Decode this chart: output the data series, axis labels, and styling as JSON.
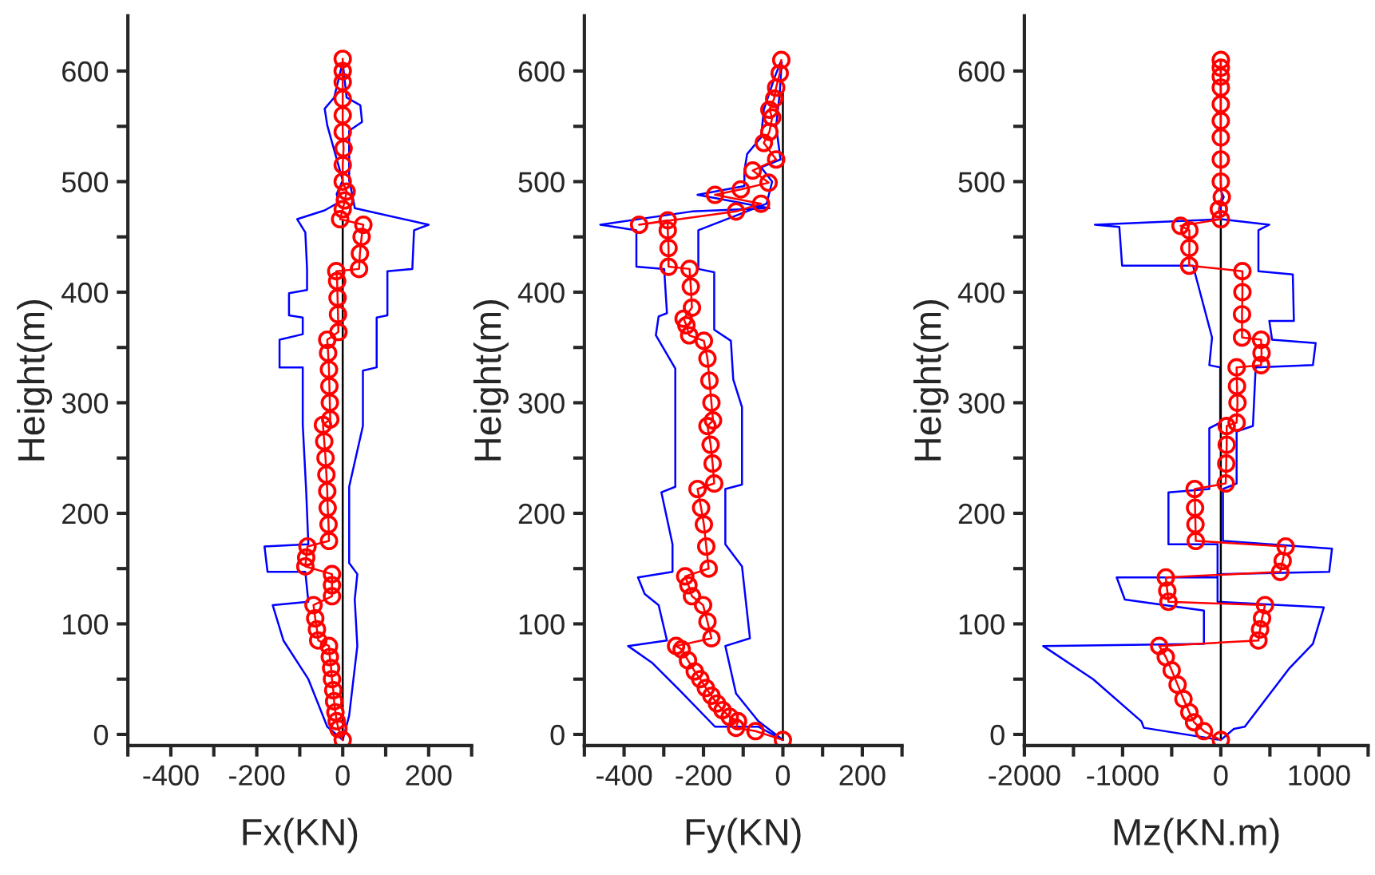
{
  "chart_data": [
    {
      "type": "line",
      "orientation": "horizontal",
      "xlabel": "Fx(KN)",
      "ylabel": "Height(m)",
      "xlim": [
        -500,
        300
      ],
      "ylim": [
        -10,
        650
      ],
      "xticks": [
        {
          "value": -500,
          "label": null
        },
        -400,
        {
          "value": -300,
          "label": null
        },
        -200,
        {
          "value": -100,
          "label": null
        },
        0,
        {
          "value": 100,
          "label": null
        },
        200,
        {
          "value": 300,
          "label": null
        }
      ],
      "yticks": [
        0,
        {
          "value": 50,
          "label": null
        },
        100,
        {
          "value": 150,
          "label": null
        },
        200,
        {
          "value": 250,
          "label": null
        },
        300,
        {
          "value": 350,
          "label": null
        },
        400,
        {
          "value": 450,
          "label": null
        },
        500,
        {
          "value": 550,
          "label": null
        },
        600
      ],
      "grid": false,
      "series": [
        {
          "color": "#0000ff",
          "marker": "none",
          "line_style": "solid",
          "x": [
            -5,
            7,
            50,
            85,
            117,
            120,
            147,
            147,
            170,
            172,
            220,
            280,
            332,
            332,
            357,
            362,
            377,
            379,
            399,
            402,
            421,
            454,
            466,
            474,
            481,
            489,
            501,
            551,
            566,
            576,
            608
          ],
          "values": [
            0,
            -36,
            -80,
            -138,
            -163,
            -80,
            -87,
            -175,
            -182,
            -80,
            -85,
            -93,
            -93,
            -147,
            -147,
            -93,
            -93,
            -125,
            -125,
            -83,
            -83,
            -87,
            -106,
            -42,
            -10,
            -14,
            0,
            -36,
            -42,
            -20,
            0
          ]
        },
        {
          "color": "#0000ff",
          "marker": "none",
          "line_style": "solid",
          "x": [
            -5,
            17,
            80,
            122,
            145,
            155,
            224,
            279,
            329,
            332,
            377,
            379,
            419,
            421,
            456,
            461,
            476,
            489,
            501,
            546,
            554,
            569,
            576,
            608
          ],
          "values": [
            0,
            15,
            34,
            28,
            34,
            15,
            15,
            47,
            47,
            79,
            79,
            104,
            104,
            162,
            166,
            200,
            28,
            22,
            15,
            15,
            45,
            41,
            9,
            0
          ]
        },
        {
          "color": "#000000",
          "marker": "none",
          "line_style": "solid",
          "x": [
            -5,
            464
          ],
          "values": [
            0,
            0
          ]
        },
        {
          "color": "#ff0000",
          "marker": "circle",
          "line_style": "solid",
          "x": [
            -5,
            5,
            12,
            20,
            30,
            40,
            50,
            60,
            70,
            80,
            85,
            95,
            105,
            117,
            125,
            135,
            145,
            152,
            160,
            170,
            175,
            190,
            205,
            220,
            235,
            250,
            265,
            280,
            285,
            300,
            315,
            330,
            345,
            357,
            364,
            380,
            395,
            410,
            419,
            421,
            435,
            450,
            461,
            466,
            475,
            483,
            491,
            500,
            515,
            530,
            545,
            560,
            575,
            590,
            600,
            611
          ],
          "values": [
            0,
            -10,
            -14,
            -17,
            -20,
            -22,
            -25,
            -27,
            -30,
            -32,
            -57,
            -60,
            -64,
            -68,
            -25,
            -25,
            -25,
            -87,
            -85,
            -82,
            -32,
            -33,
            -35,
            -36,
            -38,
            -40,
            -43,
            -46,
            -29,
            -30,
            -31,
            -32,
            -34,
            -36,
            -10,
            -11,
            -12,
            -13,
            -15,
            38,
            40,
            44,
            48,
            -6,
            0,
            5,
            9,
            0,
            0,
            2,
            0,
            0,
            0,
            0,
            0,
            0
          ]
        }
      ]
    },
    {
      "type": "line",
      "orientation": "horizontal",
      "xlabel": "Fy(KN)",
      "ylabel": "Height(m)",
      "xlim": [
        -500,
        300
      ],
      "ylim": [
        -10,
        650
      ],
      "xticks": [
        {
          "value": -500,
          "label": null
        },
        -400,
        {
          "value": -300,
          "label": null
        },
        -200,
        {
          "value": -100,
          "label": null
        },
        0,
        {
          "value": 100,
          "label": null
        },
        200,
        {
          "value": 300,
          "label": null
        }
      ],
      "yticks": [
        0,
        {
          "value": 50,
          "label": null
        },
        100,
        {
          "value": 150,
          "label": null
        },
        200,
        {
          "value": 250,
          "label": null
        },
        300,
        {
          "value": 350,
          "label": null
        },
        400,
        {
          "value": 450,
          "label": null
        },
        500,
        {
          "value": 550,
          "label": null
        },
        600
      ],
      "grid": false,
      "series": [
        {
          "color": "#0000ff",
          "marker": "none",
          "line_style": "solid",
          "x": [
            -5,
            7,
            7,
            40,
            65,
            80,
            85,
            117,
            127,
            142,
            147,
            172,
            219,
            224,
            331,
            361,
            378,
            381,
            421,
            423,
            456,
            461,
            473,
            476,
            488,
            496,
            510,
            525,
            540,
            565,
            595,
            608
          ],
          "values": [
            0,
            -62,
            -171,
            -260,
            -330,
            -390,
            -292,
            -313,
            -348,
            -365,
            -278,
            -278,
            -306,
            -271,
            -271,
            -320,
            -313,
            -292,
            -299,
            -369,
            -369,
            -460,
            -229,
            -34,
            -215,
            -97,
            -97,
            -90,
            -55,
            -48,
            -20,
            -6
          ]
        },
        {
          "color": "#0000ff",
          "marker": "none",
          "line_style": "solid",
          "x": [
            -5,
            12,
            37,
            80,
            87,
            152,
            172,
            222,
            226,
            296,
            321,
            356,
            366,
            418,
            421,
            456,
            480,
            500,
            513,
            520,
            550,
            580,
            608
          ],
          "values": [
            0,
            -62,
            -118,
            -145,
            -83,
            -103,
            -145,
            -145,
            -103,
            -103,
            -125,
            -131,
            -173,
            -173,
            -213,
            -213,
            -41,
            -27,
            -55,
            -6,
            -17,
            -8,
            -3
          ]
        },
        {
          "color": "#000000",
          "marker": "none",
          "line_style": "solid",
          "x": [
            -5,
            580
          ],
          "values": [
            0,
            0
          ]
        },
        {
          "color": "#ff0000",
          "marker": "circle",
          "line_style": "solid",
          "x": [
            -5,
            3,
            6,
            12,
            16,
            22,
            28,
            35,
            42,
            50,
            57,
            67,
            77,
            80,
            87,
            102,
            117,
            125,
            135,
            143,
            150,
            170,
            190,
            205,
            222,
            227,
            245,
            262,
            279,
            284,
            300,
            320,
            340,
            356,
            361,
            370,
            376,
            386,
            405,
            421,
            423,
            440,
            456,
            465,
            461,
            473,
            480,
            488,
            493,
            499,
            510,
            520,
            535,
            545,
            558,
            565,
            575,
            585,
            598,
            610
          ],
          "values": [
            0,
            -69,
            -118,
            -113,
            -134,
            -152,
            -166,
            -180,
            -194,
            -208,
            -222,
            -239,
            -255,
            -269,
            -180,
            -190,
            -201,
            -229,
            -238,
            -246,
            -187,
            -193,
            -199,
            -206,
            -215,
            -173,
            -177,
            -182,
            -190,
            -176,
            -180,
            -185,
            -190,
            -199,
            -236,
            -243,
            -250,
            -229,
            -232,
            -235,
            -288,
            -288,
            -290,
            -290,
            -362,
            -118,
            -55,
            -171,
            -106,
            -36,
            -76,
            -17,
            -48,
            -34,
            -27,
            -34,
            -22,
            -17,
            -8,
            -4
          ]
        }
      ]
    },
    {
      "type": "line",
      "orientation": "horizontal",
      "xlabel": "Mz(KN.m)",
      "ylabel": "Height(m)",
      "xlim": [
        -2000,
        1500
      ],
      "ylim": [
        -10,
        650
      ],
      "xticks": [
        -2000,
        {
          "value": -1500,
          "label": null
        },
        -1000,
        {
          "value": -500,
          "label": null
        },
        0,
        {
          "value": 500,
          "label": null
        },
        1000,
        {
          "value": 1500,
          "label": null
        }
      ],
      "yticks": [
        0,
        {
          "value": 50,
          "label": null
        },
        100,
        {
          "value": 150,
          "label": null
        },
        200,
        {
          "value": 250,
          "label": null
        },
        300,
        {
          "value": 350,
          "label": null
        },
        400,
        {
          "value": 450,
          "label": null
        },
        500,
        {
          "value": 550,
          "label": null
        },
        600
      ],
      "grid": false,
      "series": [
        {
          "color": "#0000ff",
          "marker": "none",
          "line_style": "solid",
          "x": [
            -5,
            6,
            12,
            50,
            80,
            82,
            112,
            122,
            142,
            142,
            172,
            172,
            219,
            222,
            277,
            282,
            332,
            334,
            359,
            424,
            424,
            459,
            461,
            466,
            480,
            486,
            492,
            610
          ],
          "values": [
            0,
            -783,
            -810,
            -1300,
            -1809,
            -172,
            -172,
            -977,
            -1060,
            -33,
            -33,
            -533,
            -533,
            -117,
            -117,
            -6,
            -6,
            -117,
            -89,
            -283,
            -1005,
            -1033,
            -1282,
            0,
            0,
            30,
            0,
            0
          ]
        },
        {
          "color": "#0000ff",
          "marker": "none",
          "line_style": "solid",
          "x": [
            -5,
            5,
            7,
            60,
            82,
            115,
            120,
            145,
            147,
            168,
            175,
            222,
            227,
            274,
            279,
            332,
            334,
            354,
            357,
            374,
            374,
            416,
            419,
            456,
            461,
            466
          ],
          "values": [
            0,
            133,
            244,
            700,
            938,
            1049,
            -33,
            -33,
            1104,
            1132,
            22,
            22,
            161,
            161,
            327,
            355,
            938,
            966,
            522,
            494,
            744,
            733,
            383,
            383,
            494,
            0
          ]
        },
        {
          "color": "#000000",
          "marker": "none",
          "line_style": "solid",
          "x": [
            -5,
            466
          ],
          "values": [
            0,
            0
          ]
        },
        {
          "color": "#ff0000",
          "marker": "circle",
          "line_style": "solid",
          "x": [
            -5,
            3,
            11,
            20,
            32,
            45,
            58,
            70,
            80,
            85,
            95,
            105,
            117,
            120,
            130,
            142,
            147,
            157,
            170,
            175,
            190,
            205,
            222,
            227,
            245,
            262,
            279,
            282,
            300,
            315,
            332,
            334,
            345,
            357,
            359,
            380,
            400,
            419,
            424,
            440,
            456,
            460,
            466,
            475,
            486,
            500,
            520,
            540,
            555,
            570,
            585,
            595,
            603,
            610
          ],
          "values": [
            0,
            -172,
            -272,
            -320,
            -380,
            -440,
            -500,
            -560,
            -627,
            383,
            400,
            420,
            450,
            -533,
            -545,
            -560,
            605,
            630,
            660,
            -255,
            -258,
            -262,
            -266,
            50,
            55,
            60,
            60,
            161,
            170,
            165,
            161,
            410,
            415,
            410,
            216,
            216,
            220,
            220,
            -322,
            -320,
            -320,
            -410,
            0,
            -20,
            10,
            0,
            0,
            0,
            0,
            0,
            0,
            0,
            0,
            0
          ]
        }
      ]
    }
  ]
}
